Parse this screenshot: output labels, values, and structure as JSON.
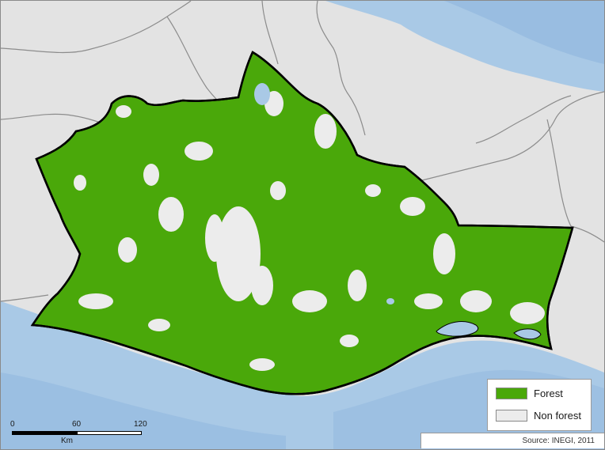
{
  "legend": {
    "items": [
      {
        "label": "Forest",
        "color": "#4aa80a"
      },
      {
        "label": "Non forest",
        "color": "#ececec"
      }
    ]
  },
  "scale_bar": {
    "ticks": [
      "0",
      "60",
      "120"
    ],
    "unit": "Km"
  },
  "source": "Source: INEGI, 2011",
  "colors": {
    "land_outside": "#e3e3e3",
    "ocean": "#a9c9e6",
    "forest": "#4aa80a",
    "non_forest": "#ececec",
    "state_border": "#000000",
    "admin_lines": "#8c8c8c"
  }
}
